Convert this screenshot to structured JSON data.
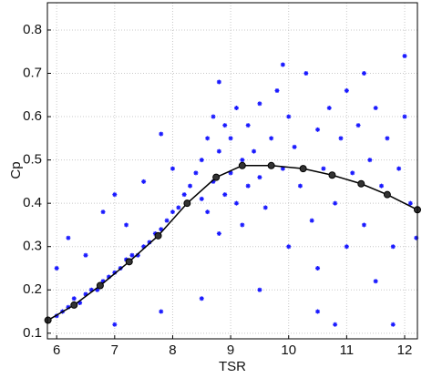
{
  "chart_data": {
    "type": "scatter",
    "xlabel": "TSR",
    "ylabel": "Cp",
    "xlim": [
      5.84,
      12.22
    ],
    "ylim": [
      0.087,
      0.863
    ],
    "xticks": [
      6,
      7,
      8,
      9,
      10,
      11,
      12
    ],
    "yticks": [
      0.1,
      0.2,
      0.3,
      0.4,
      0.5,
      0.6,
      0.7,
      0.8
    ],
    "grid": true,
    "series": [
      {
        "type": "scatter",
        "color": "#1a1aff",
        "x": [
          6.0,
          6.1,
          6.2,
          6.3,
          6.4,
          6.5,
          6.6,
          6.7,
          6.8,
          6.9,
          7.0,
          7.1,
          7.2,
          7.3,
          7.4,
          7.5,
          7.6,
          7.7,
          7.8,
          7.9,
          8.0,
          8.1,
          8.2,
          8.3,
          8.4,
          8.5,
          8.5,
          8.6,
          8.6,
          8.7,
          8.7,
          8.8,
          8.8,
          8.9,
          8.9,
          9.0,
          9.0,
          9.1,
          9.1,
          9.2,
          9.2,
          9.3,
          9.3,
          9.4,
          9.5,
          9.5,
          9.6,
          9.7,
          9.8,
          9.9,
          10.0,
          10.0,
          10.1,
          10.2,
          10.3,
          10.4,
          10.5,
          10.5,
          10.6,
          10.7,
          10.8,
          10.9,
          11.0,
          11.0,
          11.1,
          11.2,
          11.3,
          11.4,
          11.5,
          11.5,
          11.6,
          11.7,
          11.8,
          11.9,
          12.0,
          12.1,
          12.2,
          6.5,
          6.8,
          7.0,
          7.2,
          7.5,
          7.8,
          8.0,
          6.2,
          6.0,
          7.0,
          8.5,
          9.5,
          10.5,
          11.8,
          12.0,
          11.3,
          10.8,
          9.9,
          8.8,
          7.8
        ],
        "values": [
          0.14,
          0.15,
          0.16,
          0.18,
          0.17,
          0.19,
          0.2,
          0.2,
          0.22,
          0.23,
          0.24,
          0.25,
          0.27,
          0.28,
          0.28,
          0.3,
          0.31,
          0.33,
          0.34,
          0.36,
          0.38,
          0.39,
          0.42,
          0.44,
          0.47,
          0.5,
          0.41,
          0.55,
          0.38,
          0.6,
          0.45,
          0.52,
          0.33,
          0.58,
          0.42,
          0.55,
          0.47,
          0.62,
          0.4,
          0.5,
          0.35,
          0.58,
          0.44,
          0.52,
          0.63,
          0.46,
          0.39,
          0.55,
          0.66,
          0.48,
          0.6,
          0.3,
          0.53,
          0.44,
          0.7,
          0.36,
          0.57,
          0.25,
          0.48,
          0.62,
          0.4,
          0.55,
          0.3,
          0.66,
          0.47,
          0.58,
          0.35,
          0.5,
          0.62,
          0.22,
          0.44,
          0.55,
          0.3,
          0.48,
          0.6,
          0.4,
          0.32,
          0.28,
          0.38,
          0.42,
          0.35,
          0.45,
          0.56,
          0.48,
          0.32,
          0.25,
          0.12,
          0.18,
          0.2,
          0.15,
          0.12,
          0.74,
          0.7,
          0.12,
          0.72,
          0.68,
          0.15
        ]
      },
      {
        "type": "line",
        "color": "#000000",
        "x": [
          5.85,
          6.3,
          6.75,
          7.25,
          7.75,
          8.25,
          8.75,
          9.2,
          9.7,
          10.25,
          10.75,
          11.25,
          11.7,
          12.22
        ],
        "values": [
          0.13,
          0.165,
          0.21,
          0.265,
          0.325,
          0.4,
          0.46,
          0.487,
          0.487,
          0.48,
          0.465,
          0.445,
          0.42,
          0.385
        ]
      }
    ]
  }
}
